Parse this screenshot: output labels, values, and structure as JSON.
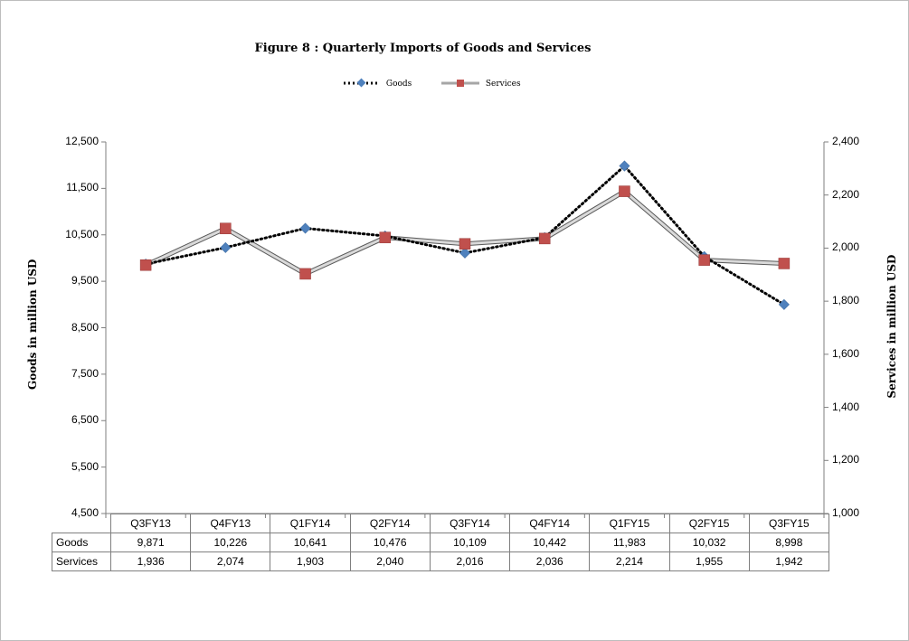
{
  "chart_data": {
    "type": "line",
    "title": "Figure  8 : Quarterly Imports of Goods and Services",
    "categories": [
      "Q3FY13",
      "Q4FY13",
      "Q1FY14",
      "Q2FY14",
      "Q3FY14",
      "Q4FY14",
      "Q1FY15",
      "Q2FY15",
      "Q3FY15"
    ],
    "series": [
      {
        "name": "Goods",
        "axis": "left",
        "values": [
          9871,
          10226,
          10641,
          10476,
          10109,
          10442,
          11983,
          10032,
          8998
        ],
        "display": [
          "9,871",
          "10,226",
          "10,641",
          "10,476",
          "10,109",
          "10,442",
          "11,983",
          "10,032",
          "8,998"
        ],
        "color": "#4f81bd",
        "line_style": "dotted",
        "line_color": "#000000"
      },
      {
        "name": "Services",
        "axis": "right",
        "values": [
          1936,
          2074,
          1903,
          2040,
          2016,
          2036,
          2214,
          1955,
          1942
        ],
        "display": [
          "1,936",
          "2,074",
          "1,903",
          "2,040",
          "2,016",
          "2,036",
          "2,214",
          "1,955",
          "1,942"
        ],
        "color": "#c0504d",
        "line_color": "#a6a6a6"
      }
    ],
    "y_left": {
      "label": "Goods in million USD",
      "ylim": [
        4500,
        12500
      ],
      "ticks": [
        "12,500",
        "11,500",
        "10,500",
        "9,500",
        "8,500",
        "7,500",
        "6,500",
        "5,500",
        "4,500"
      ]
    },
    "y_right": {
      "label": "Services in million  USD",
      "ylim": [
        1000,
        2400
      ],
      "ticks": [
        "2,400",
        "2,200",
        "2,000",
        "1,800",
        "1,600",
        "1,400",
        "1,200",
        "1,000"
      ]
    },
    "grid": false,
    "legend": "top-center",
    "data_table": true
  }
}
